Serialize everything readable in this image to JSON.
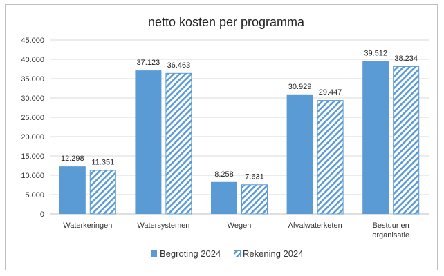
{
  "chart_data": {
    "type": "bar",
    "title": "netto kosten per programma",
    "categories": [
      [
        "Waterkeringen"
      ],
      [
        "Watersystemen"
      ],
      [
        "Wegen"
      ],
      [
        "Afvalwaterketen"
      ],
      [
        "Bestuur en",
        "organisatie"
      ]
    ],
    "series": [
      {
        "name": "Begroting 2024",
        "values": [
          12298,
          37123,
          8258,
          30929,
          39512
        ],
        "labels": [
          "12.298",
          "37.123",
          "8.258",
          "30.929",
          "39.512"
        ],
        "color": "#5b9bd5",
        "pattern": "solid"
      },
      {
        "name": "Rekening 2024",
        "values": [
          11351,
          36463,
          7631,
          29447,
          38234
        ],
        "labels": [
          "11.351",
          "36.463",
          "7.631",
          "29.447",
          "38.234"
        ],
        "color": "#5b9bd5",
        "pattern": "diagonal-hatch"
      }
    ],
    "ylim": [
      0,
      45000
    ],
    "yticks": [
      0,
      5000,
      10000,
      15000,
      20000,
      25000,
      30000,
      35000,
      40000,
      45000
    ],
    "ytick_labels": [
      "0",
      "5.000",
      "10.000",
      "15.000",
      "20.000",
      "25.000",
      "30.000",
      "35.000",
      "40.000",
      "45.000"
    ],
    "grid": true,
    "legend_position": "bottom",
    "xlabel": "",
    "ylabel": ""
  }
}
